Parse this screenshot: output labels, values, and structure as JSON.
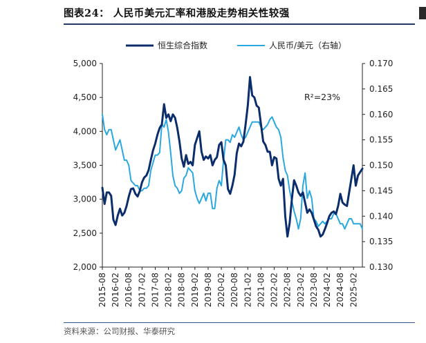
{
  "header": {
    "title": "图表24：  人民币美元汇率和港股走势相关性较强"
  },
  "footer": {
    "source": "资料来源：公司财报、华泰研究"
  },
  "colors": {
    "hsi": "#0c2d6b",
    "cny": "#29a8e0",
    "axis": "#222222",
    "rule": "#1f3864"
  },
  "chart_data": {
    "type": "line",
    "title": "人民币美元汇率和港股走势相关性较强",
    "annotation": "R²=23%",
    "legend_position": "top-center",
    "x_tick_labels": [
      "2015-08",
      "2016-02",
      "2016-08",
      "2017-02",
      "2017-08",
      "2018-02",
      "2018-08",
      "2019-02",
      "2019-08",
      "2020-02",
      "2020-08",
      "2021-02",
      "2021-08",
      "2022-02",
      "2022-08",
      "2023-02",
      "2023-08",
      "2024-02",
      "2024-08",
      "2025-02"
    ],
    "x_range": [
      0,
      118
    ],
    "y_left": {
      "label": "恒生综合指数",
      "ylim": [
        2000,
        5000
      ],
      "ticks": [
        "2,000",
        "2,500",
        "3,000",
        "3,500",
        "4,000",
        "4,500",
        "5,000"
      ]
    },
    "y_right": {
      "label": "人民币/美元（右轴）",
      "ylim": [
        0.13,
        0.17
      ],
      "ticks": [
        "0.130",
        "0.135",
        "0.140",
        "0.145",
        "0.150",
        "0.155",
        "0.160",
        "0.165",
        "0.170"
      ]
    },
    "series": [
      {
        "name": "恒生综合指数",
        "axis": "left",
        "values": [
          3170,
          2930,
          3100,
          3100,
          3050,
          2700,
          2620,
          2760,
          2860,
          2760,
          2800,
          2900,
          3040,
          3150,
          3160,
          3080,
          3040,
          3120,
          3250,
          3320,
          3350,
          3430,
          3580,
          3720,
          3820,
          3950,
          4050,
          4100,
          4400,
          4200,
          4250,
          4150,
          4250,
          4200,
          4050,
          3850,
          3600,
          3480,
          3650,
          3520,
          3550,
          3500,
          3800,
          3900,
          4000,
          3700,
          3580,
          3630,
          3600,
          3650,
          3500,
          3580,
          3620,
          3800,
          3840,
          3580,
          3500,
          3150,
          3080,
          3200,
          3360,
          3680,
          3820,
          3780,
          3850,
          4100,
          4380,
          4800,
          4530,
          4500,
          4380,
          4350,
          4100,
          3850,
          3800,
          3700,
          3700,
          3500,
          3620,
          3600,
          3300,
          3200,
          3300,
          2750,
          2450,
          2650,
          3000,
          3280,
          3200,
          3100,
          3050,
          3100,
          2950,
          2800,
          2850,
          2800,
          2700,
          2600,
          2550,
          2450,
          2480,
          2560,
          2650,
          2750,
          2800,
          2820,
          2780,
          2900,
          3080,
          2950,
          2920,
          2900,
          3100,
          3300,
          3500,
          3200,
          3350,
          3400,
          3450
        ]
      },
      {
        "name": "人民币/美元（右轴）",
        "axis": "right",
        "values": [
          0.16,
          0.157,
          0.156,
          0.157,
          0.157,
          0.155,
          0.153,
          0.154,
          0.155,
          0.153,
          0.151,
          0.151,
          0.15,
          0.147,
          0.1465,
          0.146,
          0.146,
          0.145,
          0.145,
          0.1455,
          0.1455,
          0.146,
          0.149,
          0.1505,
          0.152,
          0.152,
          0.1525,
          0.158,
          0.1575,
          0.159,
          0.1565,
          0.1525,
          0.148,
          0.146,
          0.1455,
          0.1445,
          0.145,
          0.1475,
          0.148,
          0.1495,
          0.149,
          0.1485,
          0.145,
          0.1435,
          0.1425,
          0.1435,
          0.1445,
          0.143,
          0.1445,
          0.1445,
          0.1415,
          0.1415,
          0.1455,
          0.147,
          0.146,
          0.151,
          0.155,
          0.155,
          0.1545,
          0.156,
          0.1555,
          0.1565,
          0.1575,
          0.156,
          0.155,
          0.1555,
          0.1565,
          0.1575,
          0.1585,
          0.1585,
          0.1585,
          0.1585,
          0.1575,
          0.157,
          0.1575,
          0.158,
          0.159,
          0.1595,
          0.1585,
          0.1575,
          0.157,
          0.1555,
          0.1515,
          0.149,
          0.148,
          0.145,
          0.143,
          0.141,
          0.1395,
          0.1375,
          0.1395,
          0.146,
          0.1485,
          0.1435,
          0.145,
          0.1435,
          0.1395,
          0.139,
          0.138,
          0.1385,
          0.139,
          0.1385,
          0.139,
          0.1395,
          0.1395,
          0.1405,
          0.1405,
          0.1395,
          0.1385,
          0.1385,
          0.1375,
          0.1385,
          0.1395,
          0.1395,
          0.1385,
          0.1385,
          0.1385,
          0.1385,
          0.1375
        ]
      }
    ]
  }
}
